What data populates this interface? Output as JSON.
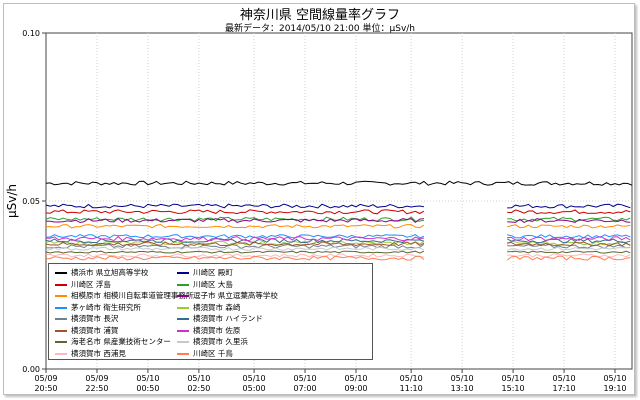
{
  "chart_data": {
    "type": "line",
    "title": "神奈川県 空間線量率グラフ",
    "subtitle": "最新データ：2014/05/10 21:00 単位：μSv/h",
    "ylabel": "μSv/h",
    "xlabel": "",
    "ylim": [
      0,
      0.1
    ],
    "y_ticks": [
      "0.00",
      "0.05",
      "0.10"
    ],
    "grid": true,
    "x_range_hours": [
      0,
      23
    ],
    "x_ticks": [
      {
        "h": 0,
        "date": "05/09",
        "time": "20:50"
      },
      {
        "h": 2,
        "date": "05/09",
        "time": "22:50"
      },
      {
        "h": 4,
        "date": "05/10",
        "time": "00:50"
      },
      {
        "h": 6,
        "date": "05/10",
        "time": "02:50"
      },
      {
        "h": 8.167,
        "date": "05/10",
        "time": "05:00"
      },
      {
        "h": 10.167,
        "date": "05/10",
        "time": "07:00"
      },
      {
        "h": 12.167,
        "date": "05/10",
        "time": "09:00"
      },
      {
        "h": 14.333,
        "date": "05/10",
        "time": "11:10"
      },
      {
        "h": 16.333,
        "date": "05/10",
        "time": "13:10"
      },
      {
        "h": 18.333,
        "date": "05/10",
        "time": "15:10"
      },
      {
        "h": 20.333,
        "date": "05/10",
        "time": "17:10"
      },
      {
        "h": 22.333,
        "date": "05/10",
        "time": "19:10"
      }
    ],
    "legend_position": "bottom-left",
    "gap_hours": [
      14.9,
      18.1
    ],
    "series": [
      {
        "name": "横浜市 県立旭高等学校",
        "color": "#000000",
        "level": 0.0553,
        "jitter": 0.0006,
        "continuous": true
      },
      {
        "name": "川崎区 殿町",
        "color": "#00008b",
        "level": 0.0485,
        "jitter": 0.0006,
        "continuous": false
      },
      {
        "name": "川崎区 浮島",
        "color": "#cc0000",
        "level": 0.0468,
        "jitter": 0.0006,
        "continuous": false
      },
      {
        "name": "川崎区 大島",
        "color": "#2ca02c",
        "level": 0.0446,
        "jitter": 0.0006,
        "continuous": false
      },
      {
        "name": "相模原市 相模川自転車道管理事務所",
        "color": "#ff8c00",
        "level": 0.0425,
        "jitter": 0.0005,
        "continuous": false
      },
      {
        "name": "逗子市 県立逗葉高等学校",
        "color": "#8b008b",
        "level": 0.0442,
        "jitter": 0.0006,
        "continuous": false
      },
      {
        "name": "茅ヶ崎市 衛生研究所",
        "color": "#1e90ff",
        "level": 0.0395,
        "jitter": 0.0005,
        "continuous": false
      },
      {
        "name": "横須賀市 森崎",
        "color": "#9acd32",
        "level": 0.0375,
        "jitter": 0.0006,
        "continuous": false
      },
      {
        "name": "横須賀市 長沢",
        "color": "#708090",
        "level": 0.0365,
        "jitter": 0.0006,
        "continuous": false
      },
      {
        "name": "横須賀市 ハイランド",
        "color": "#2f6f8f",
        "level": 0.0382,
        "jitter": 0.0006,
        "continuous": false
      },
      {
        "name": "横須賀市 浦賀",
        "color": "#a0522d",
        "level": 0.0372,
        "jitter": 0.0006,
        "continuous": false
      },
      {
        "name": "横須賀市 佐原",
        "color": "#cc33cc",
        "level": 0.0388,
        "jitter": 0.0006,
        "continuous": false
      },
      {
        "name": "海老名市 県産業技術センター",
        "color": "#556b2f",
        "level": 0.0348,
        "jitter": 0.0003,
        "continuous": false
      },
      {
        "name": "横須賀市 久里浜",
        "color": "#c8c8c8",
        "level": 0.0358,
        "jitter": 0.0005,
        "continuous": false
      },
      {
        "name": "横須賀市 西浦見",
        "color": "#ffb6c1",
        "level": 0.0338,
        "jitter": 0.0005,
        "continuous": false
      },
      {
        "name": "川崎区 千鳥",
        "color": "#ff7f50",
        "level": 0.033,
        "jitter": 0.0006,
        "continuous": false
      }
    ]
  }
}
